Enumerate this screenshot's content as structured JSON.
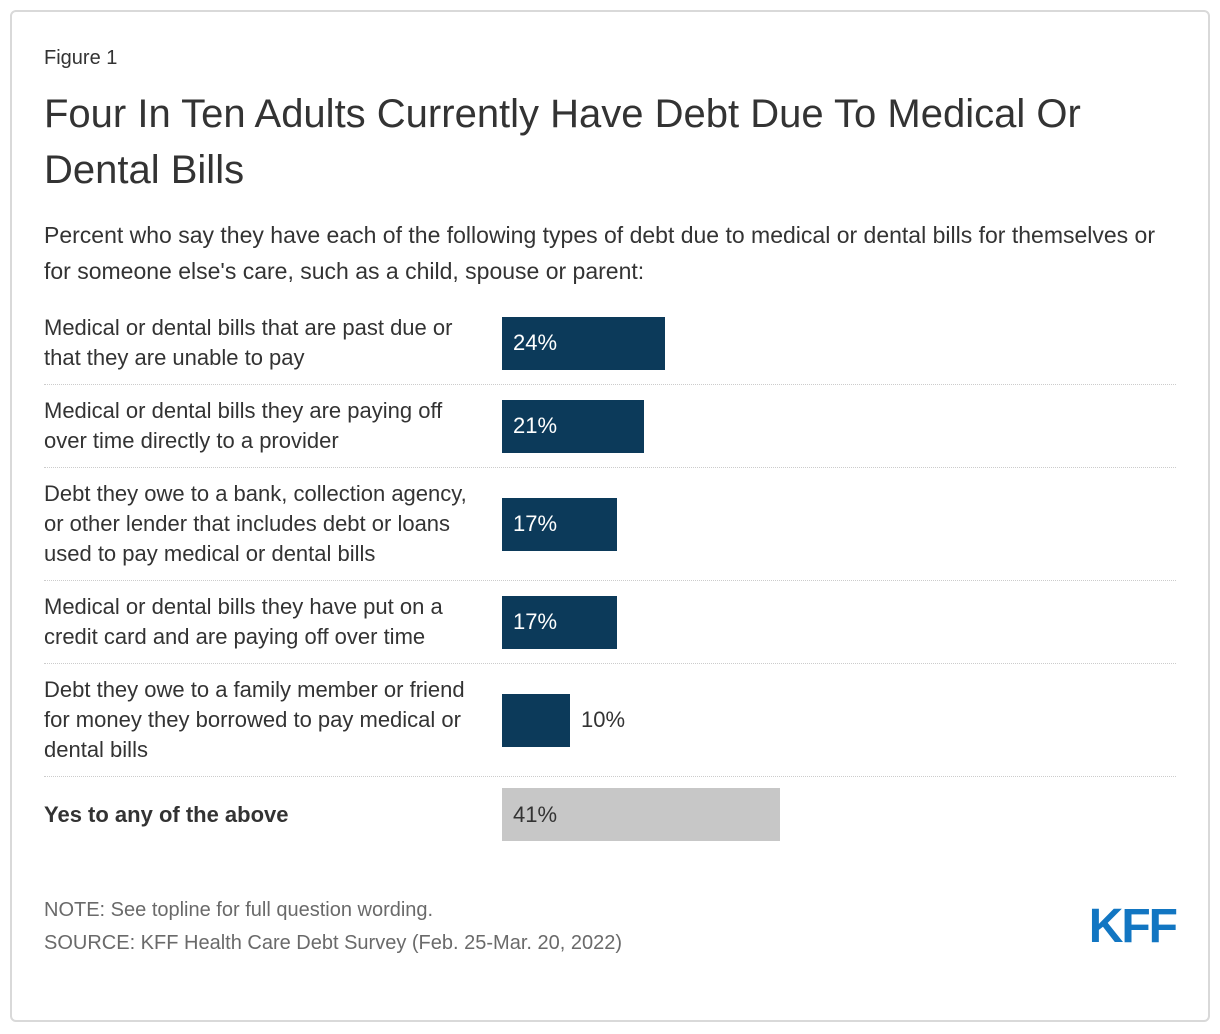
{
  "figure_label": "Figure 1",
  "title": "Four In Ten Adults Currently Have Debt Due To Medical Or Dental Bills",
  "subtitle": "Percent who say they have each of the following types of debt due to medical or dental bills for themselves or for someone else's care, such as a child, spouse or parent:",
  "chart_data": {
    "type": "bar",
    "orientation": "horizontal",
    "unit": "%",
    "axis": "none",
    "categories": [
      "Medical or dental bills that are past due or that they are unable to pay",
      "Medical or dental bills they are paying off over time directly to a provider",
      "Debt they owe to a bank, collection agency, or other lender that includes debt or loans used to pay medical or dental bills",
      "Medical or dental bills they have put on a credit card and are paying off over time",
      "Debt they owe to a family member or friend for money they borrowed to pay medical or dental bills",
      "Yes to any of the above"
    ],
    "values": [
      24,
      21,
      17,
      17,
      10,
      41
    ],
    "value_labels": [
      "24%",
      "21%",
      "17%",
      "17%",
      "10%",
      "41%"
    ],
    "rows": [
      {
        "category": "Medical or dental bills that are past due or that they are unable to pay",
        "value": 24,
        "display": "24%",
        "bar": "primary",
        "value_label_position": "inside",
        "bold": false
      },
      {
        "category": "Medical or dental bills they are paying off over time directly to a provider",
        "value": 21,
        "display": "21%",
        "bar": "primary",
        "value_label_position": "inside",
        "bold": false
      },
      {
        "category": "Debt they owe to a bank, collection agency, or other lender that includes debt or loans used to pay medical or dental bills",
        "value": 17,
        "display": "17%",
        "bar": "primary",
        "value_label_position": "inside",
        "bold": false
      },
      {
        "category": "Medical or dental bills they have put on a credit card and are paying off over time",
        "value": 17,
        "display": "17%",
        "bar": "primary",
        "value_label_position": "inside",
        "bold": false
      },
      {
        "category": "Debt they owe to a family member or friend for money they borrowed to pay medical or dental bills",
        "value": 10,
        "display": "10%",
        "bar": "primary",
        "value_label_position": "outside",
        "bold": false
      },
      {
        "category": "Yes to any of the above",
        "value": 41,
        "display": "41%",
        "bar": "total",
        "value_label_position": "inside",
        "bold": true
      }
    ],
    "colors": {
      "primary": "#0C3A5A",
      "total": "#C7C7C7",
      "value_label_on_primary": "#FFFFFF",
      "value_label_on_total": "#333333"
    }
  },
  "note": "NOTE: See topline for full question wording.",
  "source": "SOURCE: KFF Health Care Debt Survey (Feb. 25-Mar. 20, 2022)",
  "logo_text": "KFF",
  "colors": {
    "text": "#333333",
    "muted_text": "#6A6A6A",
    "logo_blue": "#1276C2",
    "separator": "#CCCCCC",
    "border": "#D9D9D9"
  }
}
